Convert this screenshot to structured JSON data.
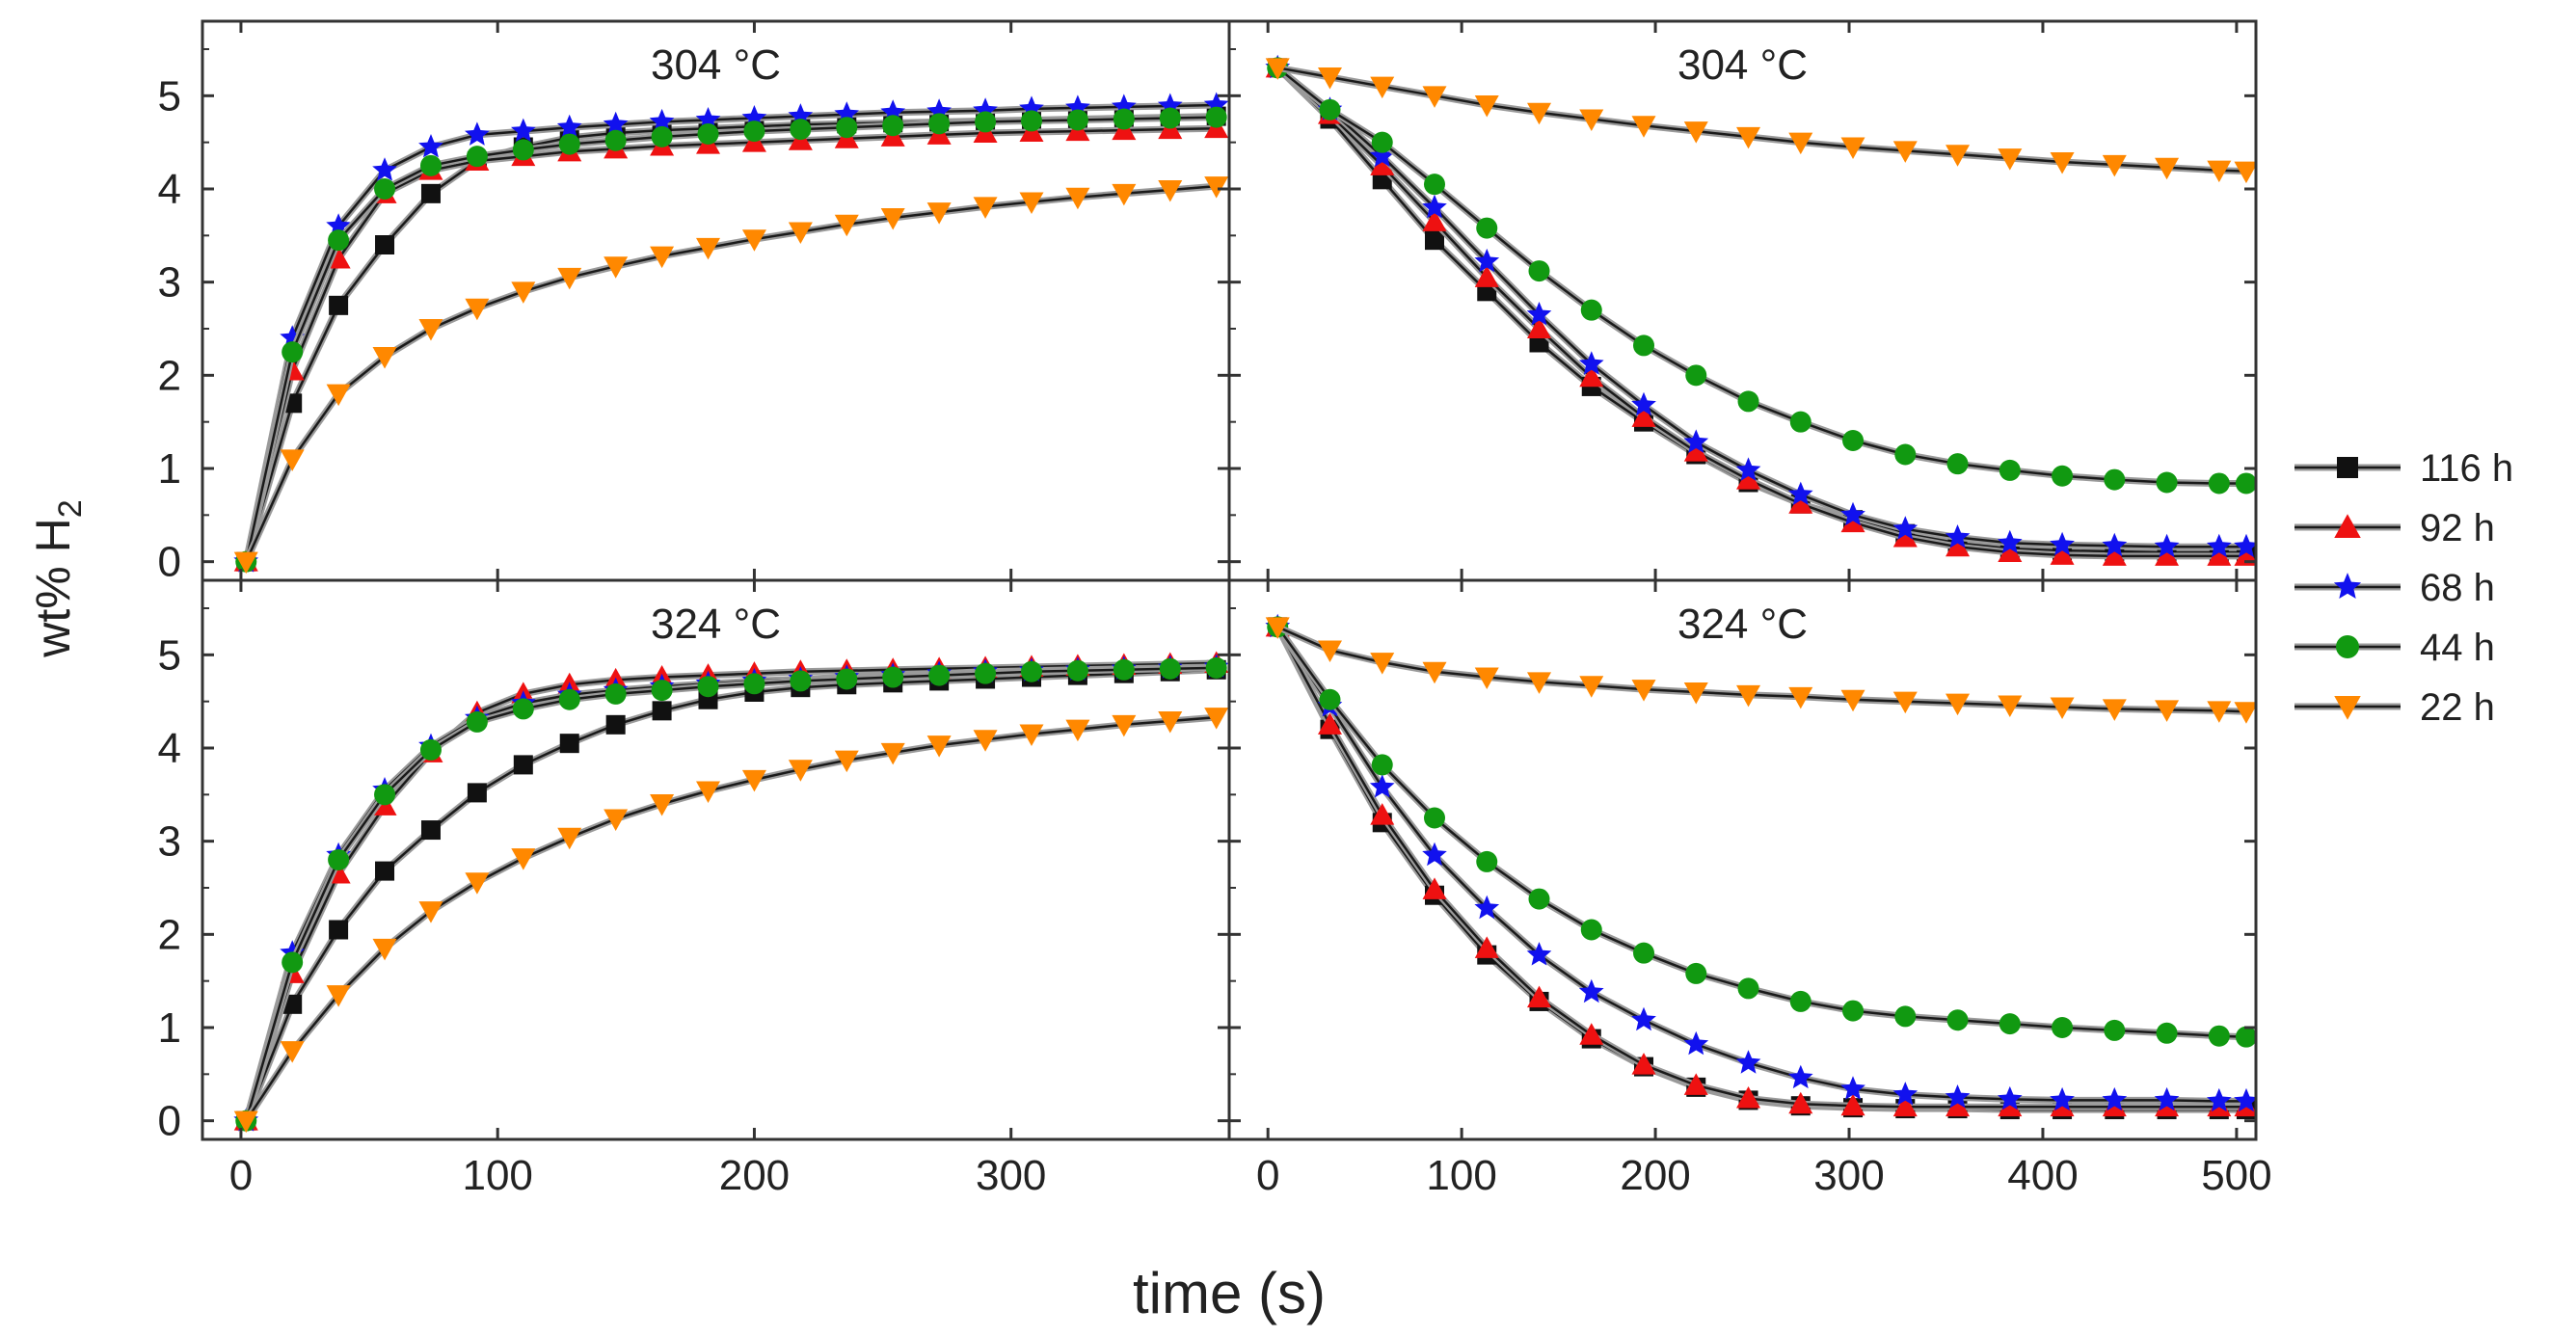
{
  "figure": {
    "xlabel": "time (s)",
    "ylabel_main": "wt% H",
    "ylabel_sub": "2"
  },
  "legend": [
    {
      "label": "116 h",
      "color": "#111111",
      "marker": "square"
    },
    {
      "label": "92 h",
      "color": "#ee1111",
      "marker": "triangle-up"
    },
    {
      "label": "68 h",
      "color": "#1111ee",
      "marker": "star"
    },
    {
      "label": "44 h",
      "color": "#119911",
      "marker": "circle"
    },
    {
      "label": "22 h",
      "color": "#ff8800",
      "marker": "triangle-down"
    }
  ],
  "chart_data": [
    {
      "type": "line",
      "title": "304 °C",
      "xlim": [
        -15,
        385
      ],
      "ylim": [
        -0.2,
        5.8
      ],
      "xticks": [
        0,
        100,
        200,
        300
      ],
      "yticks": [
        0,
        1,
        2,
        3,
        4,
        5
      ],
      "series": [
        {
          "name": "116 h",
          "x": [
            2,
            20,
            38,
            56,
            74,
            92,
            110,
            128,
            146,
            164,
            182,
            200,
            218,
            236,
            254,
            272,
            290,
            308,
            326,
            344,
            362,
            380
          ],
          "y": [
            0,
            1.7,
            2.75,
            3.4,
            3.95,
            4.3,
            4.45,
            4.55,
            4.6,
            4.63,
            4.65,
            4.67,
            4.69,
            4.7,
            4.71,
            4.72,
            4.73,
            4.74,
            4.75,
            4.76,
            4.77,
            4.78
          ]
        },
        {
          "name": "92 h",
          "x": [
            2,
            20,
            38,
            56,
            74,
            92,
            110,
            128,
            146,
            164,
            182,
            200,
            218,
            236,
            254,
            272,
            290,
            308,
            326,
            344,
            362,
            380
          ],
          "y": [
            0,
            2.05,
            3.25,
            3.95,
            4.2,
            4.3,
            4.35,
            4.4,
            4.43,
            4.46,
            4.48,
            4.5,
            4.52,
            4.54,
            4.56,
            4.58,
            4.6,
            4.61,
            4.62,
            4.63,
            4.64,
            4.65
          ]
        },
        {
          "name": "68 h",
          "x": [
            2,
            20,
            38,
            56,
            74,
            92,
            110,
            128,
            146,
            164,
            182,
            200,
            218,
            236,
            254,
            272,
            290,
            308,
            326,
            344,
            362,
            380
          ],
          "y": [
            0,
            2.4,
            3.6,
            4.2,
            4.45,
            4.58,
            4.62,
            4.66,
            4.69,
            4.72,
            4.74,
            4.76,
            4.78,
            4.8,
            4.82,
            4.83,
            4.84,
            4.86,
            4.87,
            4.88,
            4.89,
            4.9
          ]
        },
        {
          "name": "44 h",
          "x": [
            2,
            20,
            38,
            56,
            74,
            92,
            110,
            128,
            146,
            164,
            182,
            200,
            218,
            236,
            254,
            272,
            290,
            308,
            326,
            344,
            362,
            380
          ],
          "y": [
            0,
            2.25,
            3.45,
            4.0,
            4.25,
            4.35,
            4.42,
            4.48,
            4.52,
            4.56,
            4.59,
            4.62,
            4.64,
            4.66,
            4.68,
            4.7,
            4.72,
            4.73,
            4.74,
            4.75,
            4.76,
            4.77
          ]
        },
        {
          "name": "22 h",
          "x": [
            2,
            20,
            38,
            56,
            74,
            92,
            110,
            128,
            146,
            164,
            182,
            200,
            218,
            236,
            254,
            272,
            290,
            308,
            326,
            344,
            362,
            380
          ],
          "y": [
            0,
            1.1,
            1.8,
            2.2,
            2.5,
            2.72,
            2.9,
            3.05,
            3.17,
            3.28,
            3.37,
            3.46,
            3.54,
            3.62,
            3.69,
            3.75,
            3.81,
            3.86,
            3.91,
            3.95,
            3.99,
            4.03
          ]
        }
      ]
    },
    {
      "type": "line",
      "title": "304 °C",
      "xlim": [
        -20,
        510
      ],
      "ylim": [
        -0.2,
        5.8
      ],
      "xticks": [
        0,
        100,
        200,
        300,
        400,
        500
      ],
      "yticks": [
        0,
        1,
        2,
        3,
        4,
        5
      ],
      "series": [
        {
          "name": "116 h",
          "x": [
            5,
            32,
            59,
            86,
            113,
            140,
            167,
            194,
            221,
            248,
            275,
            302,
            329,
            356,
            383,
            410,
            437,
            464,
            491,
            505
          ],
          "y": [
            5.3,
            4.75,
            4.1,
            3.45,
            2.9,
            2.35,
            1.88,
            1.5,
            1.15,
            0.85,
            0.62,
            0.45,
            0.3,
            0.2,
            0.14,
            0.12,
            0.11,
            0.1,
            0.1,
            0.1
          ]
        },
        {
          "name": "92 h",
          "x": [
            5,
            32,
            59,
            86,
            113,
            140,
            167,
            194,
            221,
            248,
            275,
            302,
            329,
            356,
            383,
            410,
            437,
            464,
            491,
            505
          ],
          "y": [
            5.3,
            4.8,
            4.25,
            3.65,
            3.05,
            2.5,
            1.98,
            1.55,
            1.18,
            0.88,
            0.62,
            0.42,
            0.26,
            0.16,
            0.1,
            0.07,
            0.06,
            0.06,
            0.06,
            0.06
          ]
        },
        {
          "name": "68 h",
          "x": [
            5,
            32,
            59,
            86,
            113,
            140,
            167,
            194,
            221,
            248,
            275,
            302,
            329,
            356,
            383,
            410,
            437,
            464,
            491,
            505
          ],
          "y": [
            5.3,
            4.85,
            4.35,
            3.8,
            3.22,
            2.65,
            2.12,
            1.68,
            1.28,
            0.98,
            0.72,
            0.5,
            0.35,
            0.26,
            0.2,
            0.18,
            0.17,
            0.16,
            0.16,
            0.16
          ]
        },
        {
          "name": "44 h",
          "x": [
            5,
            32,
            59,
            86,
            113,
            140,
            167,
            194,
            221,
            248,
            275,
            302,
            329,
            356,
            383,
            410,
            437,
            464,
            491,
            505
          ],
          "y": [
            5.3,
            4.85,
            4.5,
            4.05,
            3.58,
            3.12,
            2.7,
            2.32,
            2.0,
            1.72,
            1.5,
            1.3,
            1.15,
            1.05,
            0.98,
            0.92,
            0.88,
            0.85,
            0.84,
            0.84
          ]
        },
        {
          "name": "22 h",
          "x": [
            5,
            32,
            59,
            86,
            113,
            140,
            167,
            194,
            221,
            248,
            275,
            302,
            329,
            356,
            383,
            410,
            437,
            464,
            491,
            505
          ],
          "y": [
            5.3,
            5.2,
            5.1,
            5.0,
            4.9,
            4.82,
            4.75,
            4.68,
            4.62,
            4.56,
            4.5,
            4.45,
            4.41,
            4.37,
            4.33,
            4.29,
            4.26,
            4.23,
            4.2,
            4.19
          ]
        }
      ]
    },
    {
      "type": "line",
      "title": "324 °C",
      "xlim": [
        -15,
        385
      ],
      "ylim": [
        -0.2,
        5.8
      ],
      "xticks": [
        0,
        100,
        200,
        300
      ],
      "yticks": [
        0,
        1,
        2,
        3,
        4,
        5
      ],
      "series": [
        {
          "name": "116 h",
          "x": [
            2,
            20,
            38,
            56,
            74,
            92,
            110,
            128,
            146,
            164,
            182,
            200,
            218,
            236,
            254,
            272,
            290,
            308,
            326,
            344,
            362,
            380
          ],
          "y": [
            0,
            1.25,
            2.05,
            2.68,
            3.12,
            3.52,
            3.82,
            4.05,
            4.25,
            4.4,
            4.52,
            4.6,
            4.65,
            4.68,
            4.7,
            4.72,
            4.74,
            4.76,
            4.78,
            4.8,
            4.82,
            4.84
          ]
        },
        {
          "name": "92 h",
          "x": [
            2,
            20,
            38,
            56,
            74,
            92,
            110,
            128,
            146,
            164,
            182,
            200,
            218,
            236,
            254,
            272,
            290,
            308,
            326,
            344,
            362,
            380
          ],
          "y": [
            0,
            1.58,
            2.65,
            3.38,
            3.95,
            4.38,
            4.58,
            4.68,
            4.73,
            4.76,
            4.78,
            4.8,
            4.82,
            4.83,
            4.84,
            4.85,
            4.86,
            4.87,
            4.88,
            4.89,
            4.9,
            4.91
          ]
        },
        {
          "name": "68 h",
          "x": [
            2,
            20,
            38,
            56,
            74,
            92,
            110,
            128,
            146,
            164,
            182,
            200,
            218,
            236,
            254,
            272,
            290,
            308,
            326,
            344,
            362,
            380
          ],
          "y": [
            0,
            1.8,
            2.85,
            3.55,
            4.02,
            4.32,
            4.48,
            4.57,
            4.62,
            4.66,
            4.69,
            4.72,
            4.74,
            4.76,
            4.78,
            4.8,
            4.82,
            4.83,
            4.84,
            4.85,
            4.86,
            4.87
          ]
        },
        {
          "name": "44 h",
          "x": [
            2,
            20,
            38,
            56,
            74,
            92,
            110,
            128,
            146,
            164,
            182,
            200,
            218,
            236,
            254,
            272,
            290,
            308,
            326,
            344,
            362,
            380
          ],
          "y": [
            0,
            1.7,
            2.8,
            3.5,
            3.98,
            4.28,
            4.42,
            4.52,
            4.58,
            4.62,
            4.66,
            4.69,
            4.72,
            4.74,
            4.76,
            4.78,
            4.8,
            4.82,
            4.83,
            4.84,
            4.85,
            4.86
          ]
        },
        {
          "name": "22 h",
          "x": [
            2,
            20,
            38,
            56,
            74,
            92,
            110,
            128,
            146,
            164,
            182,
            200,
            218,
            236,
            254,
            272,
            290,
            308,
            326,
            344,
            362,
            380
          ],
          "y": [
            0,
            0.75,
            1.35,
            1.85,
            2.25,
            2.56,
            2.82,
            3.04,
            3.24,
            3.4,
            3.54,
            3.66,
            3.77,
            3.87,
            3.95,
            4.03,
            4.09,
            4.15,
            4.2,
            4.25,
            4.29,
            4.33
          ]
        }
      ]
    },
    {
      "type": "line",
      "title": "324 °C",
      "xlim": [
        -20,
        510
      ],
      "ylim": [
        -0.2,
        5.8
      ],
      "xticks": [
        0,
        100,
        200,
        300,
        400,
        500
      ],
      "yticks": [
        0,
        1,
        2,
        3,
        4,
        5
      ],
      "series": [
        {
          "name": "116 h",
          "x": [
            5,
            32,
            59,
            86,
            113,
            140,
            167,
            194,
            221,
            248,
            275,
            302,
            329,
            356,
            383,
            410,
            437,
            464,
            491,
            505
          ],
          "y": [
            5.3,
            4.2,
            3.2,
            2.42,
            1.78,
            1.28,
            0.88,
            0.58,
            0.36,
            0.22,
            0.16,
            0.14,
            0.13,
            0.13,
            0.12,
            0.12,
            0.12,
            0.12,
            0.12,
            0.12
          ]
        },
        {
          "name": "92 h",
          "x": [
            5,
            32,
            59,
            86,
            113,
            140,
            167,
            194,
            221,
            248,
            275,
            302,
            329,
            356,
            383,
            410,
            437,
            464,
            491,
            505
          ],
          "y": [
            5.3,
            4.25,
            3.28,
            2.48,
            1.85,
            1.32,
            0.92,
            0.6,
            0.38,
            0.24,
            0.18,
            0.16,
            0.15,
            0.15,
            0.15,
            0.15,
            0.15,
            0.15,
            0.15,
            0.15
          ]
        },
        {
          "name": "68 h",
          "x": [
            5,
            32,
            59,
            86,
            113,
            140,
            167,
            194,
            221,
            248,
            275,
            302,
            329,
            356,
            383,
            410,
            437,
            464,
            491,
            505
          ],
          "y": [
            5.3,
            4.45,
            3.58,
            2.85,
            2.28,
            1.78,
            1.38,
            1.08,
            0.82,
            0.62,
            0.46,
            0.34,
            0.28,
            0.25,
            0.23,
            0.22,
            0.22,
            0.22,
            0.21,
            0.21
          ]
        },
        {
          "name": "44 h",
          "x": [
            5,
            32,
            59,
            86,
            113,
            140,
            167,
            194,
            221,
            248,
            275,
            302,
            329,
            356,
            383,
            410,
            437,
            464,
            491,
            505
          ],
          "y": [
            5.3,
            4.52,
            3.82,
            3.25,
            2.78,
            2.38,
            2.05,
            1.8,
            1.58,
            1.42,
            1.28,
            1.18,
            1.12,
            1.08,
            1.04,
            1.0,
            0.97,
            0.94,
            0.91,
            0.9
          ]
        },
        {
          "name": "22 h",
          "x": [
            5,
            32,
            59,
            86,
            113,
            140,
            167,
            194,
            221,
            248,
            275,
            302,
            329,
            356,
            383,
            410,
            437,
            464,
            491,
            505
          ],
          "y": [
            5.3,
            5.05,
            4.92,
            4.82,
            4.76,
            4.71,
            4.67,
            4.63,
            4.6,
            4.57,
            4.55,
            4.52,
            4.5,
            4.48,
            4.46,
            4.44,
            4.42,
            4.41,
            4.4,
            4.39
          ]
        }
      ]
    }
  ]
}
